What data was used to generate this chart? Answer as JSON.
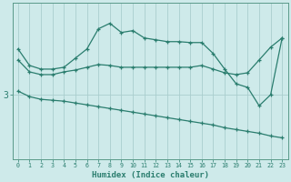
{
  "xlabel": "Humidex (Indice chaleur)",
  "background_color": "#ceeaea",
  "plot_bg_color": "#ceeaea",
  "line_color": "#2a7d6e",
  "grid_color": "#aacece",
  "x": [
    0,
    1,
    2,
    3,
    4,
    5,
    6,
    7,
    8,
    9,
    10,
    11,
    12,
    13,
    14,
    15,
    16,
    17,
    18,
    19,
    20,
    21,
    22,
    23
  ],
  "line1": [
    3.04,
    2.98,
    2.95,
    2.94,
    2.93,
    2.91,
    2.89,
    2.87,
    2.85,
    2.83,
    2.81,
    2.79,
    2.77,
    2.75,
    2.73,
    2.71,
    2.69,
    2.67,
    2.64,
    2.62,
    2.6,
    2.58,
    2.55,
    2.53
  ],
  "line2": [
    3.38,
    3.25,
    3.22,
    3.22,
    3.25,
    3.27,
    3.3,
    3.33,
    3.32,
    3.3,
    3.3,
    3.3,
    3.3,
    3.3,
    3.3,
    3.3,
    3.32,
    3.28,
    3.24,
    3.22,
    3.24,
    3.38,
    3.52,
    3.62
  ],
  "line3": [
    3.5,
    3.32,
    3.28,
    3.28,
    3.3,
    3.4,
    3.5,
    3.72,
    3.78,
    3.68,
    3.7,
    3.62,
    3.6,
    3.58,
    3.58,
    3.57,
    3.57,
    3.45,
    3.28,
    3.12,
    3.08,
    2.88,
    3.0,
    3.62
  ],
  "ylim": [
    2.3,
    4.0
  ],
  "yticks": [
    3
  ],
  "xlim": [
    0,
    23
  ],
  "xticks": [
    0,
    1,
    2,
    3,
    4,
    5,
    6,
    7,
    8,
    9,
    10,
    11,
    12,
    13,
    14,
    15,
    16,
    17,
    18,
    19,
    20,
    21,
    22,
    23
  ]
}
